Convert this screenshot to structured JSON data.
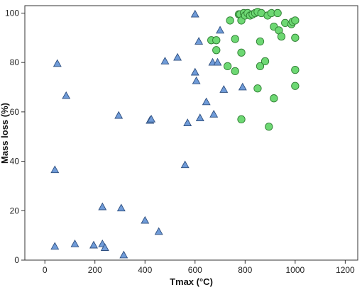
{
  "chart_data": {
    "type": "scatter",
    "title": "",
    "xlabel": "Tmax (°C)",
    "ylabel": "Mass loss (%)",
    "xlim": [
      -80,
      1250
    ],
    "ylim": [
      0,
      103
    ],
    "xticks": [
      0,
      200,
      400,
      600,
      800,
      1000,
      1200
    ],
    "yticks": [
      0,
      20,
      40,
      60,
      80,
      100
    ],
    "grid": false,
    "legend": "none",
    "series": [
      {
        "marker": "triangle",
        "color": "#6f9bd8",
        "edge_color": "#2f4f7f",
        "points": [
          [
            50,
            79.5
          ],
          [
            85,
            66.5
          ],
          [
            40,
            36.5
          ],
          [
            40,
            5.5
          ],
          [
            120,
            6.5
          ],
          [
            195,
            6
          ],
          [
            230,
            21.5
          ],
          [
            230,
            6.5
          ],
          [
            240,
            5
          ],
          [
            295,
            58.5
          ],
          [
            305,
            21
          ],
          [
            315,
            2
          ],
          [
            400,
            16
          ],
          [
            420,
            56.5
          ],
          [
            425,
            57
          ],
          [
            455,
            11.5
          ],
          [
            480,
            80.5
          ],
          [
            530,
            82
          ],
          [
            560,
            38.5
          ],
          [
            570,
            55.5
          ],
          [
            600,
            99.5
          ],
          [
            600,
            76
          ],
          [
            605,
            72.5
          ],
          [
            615,
            88.5
          ],
          [
            620,
            57.5
          ],
          [
            645,
            64
          ],
          [
            670,
            80
          ],
          [
            675,
            59
          ],
          [
            690,
            80
          ],
          [
            700,
            93
          ],
          [
            715,
            69
          ],
          [
            790,
            70
          ]
        ]
      },
      {
        "marker": "circle",
        "color": "#6dd873",
        "edge_color": "#2e7d32",
        "points": [
          [
            665,
            89
          ],
          [
            685,
            89
          ],
          [
            685,
            85
          ],
          [
            730,
            78.5
          ],
          [
            740,
            97
          ],
          [
            760,
            89.5
          ],
          [
            760,
            76.5
          ],
          [
            775,
            99.5
          ],
          [
            780,
            99.5
          ],
          [
            785,
            97
          ],
          [
            785,
            84
          ],
          [
            785,
            57
          ],
          [
            795,
            100
          ],
          [
            800,
            99
          ],
          [
            810,
            100
          ],
          [
            820,
            99
          ],
          [
            830,
            99.5
          ],
          [
            840,
            100
          ],
          [
            850,
            100.5
          ],
          [
            850,
            69.5
          ],
          [
            860,
            88.5
          ],
          [
            860,
            78.5
          ],
          [
            865,
            100
          ],
          [
            880,
            80.5
          ],
          [
            890,
            99
          ],
          [
            895,
            54
          ],
          [
            905,
            100
          ],
          [
            915,
            94.5
          ],
          [
            915,
            65.5
          ],
          [
            930,
            100
          ],
          [
            935,
            93
          ],
          [
            945,
            90.5
          ],
          [
            960,
            96
          ],
          [
            985,
            95.5
          ],
          [
            990,
            96.5
          ],
          [
            1000,
            97
          ],
          [
            1000,
            90
          ],
          [
            1000,
            77
          ],
          [
            1000,
            70.5
          ]
        ]
      }
    ]
  }
}
